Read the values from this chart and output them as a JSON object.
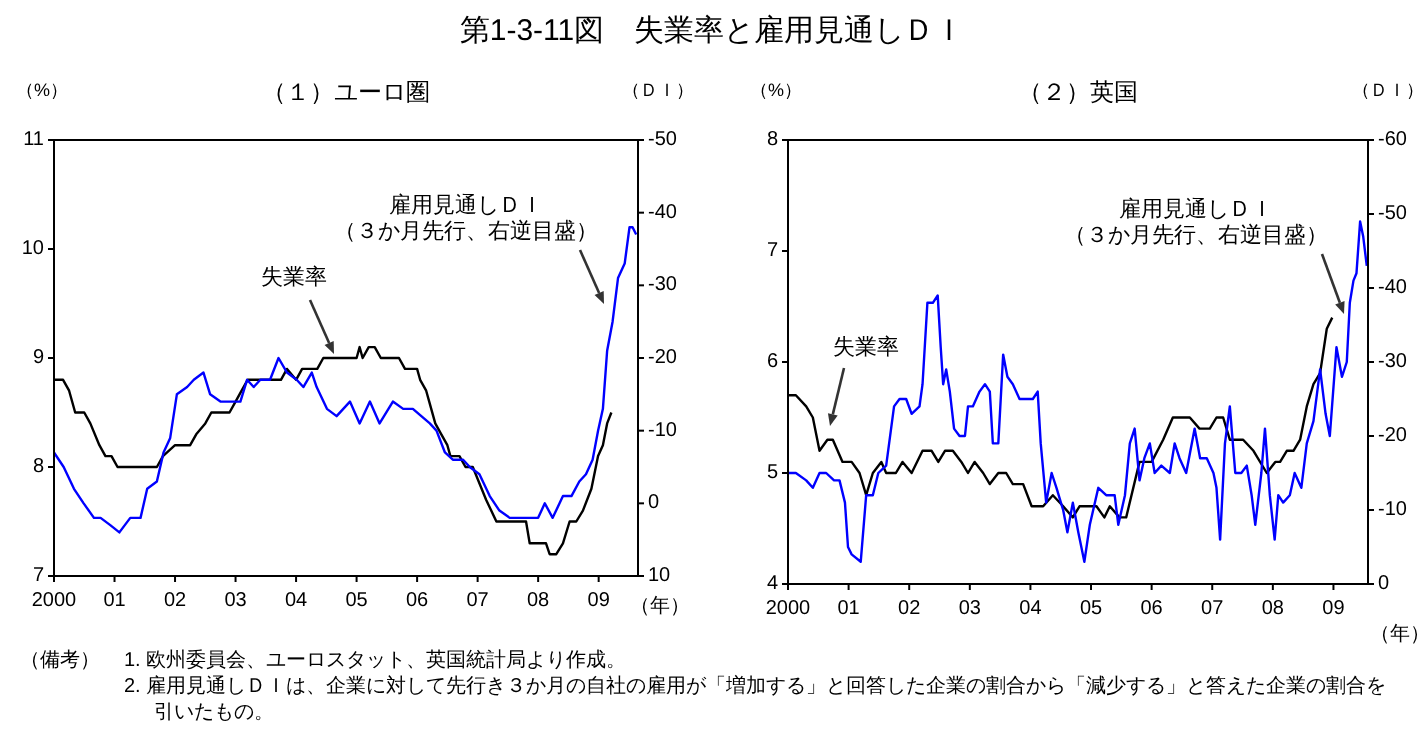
{
  "chart_data": [
    {
      "type": "line",
      "title": "（１）ユーロ圏",
      "ylabel": "（%）",
      "y2label": "（ＤＩ）",
      "xlabel": "（年）",
      "xlim": [
        2000,
        2009.65
      ],
      "xticks": [
        {
          "value": 2000,
          "label": "2000"
        },
        {
          "value": 2001,
          "label": "01"
        },
        {
          "value": 2002,
          "label": "02"
        },
        {
          "value": 2003,
          "label": "03"
        },
        {
          "value": 2004,
          "label": "04"
        },
        {
          "value": 2005,
          "label": "05"
        },
        {
          "value": 2006,
          "label": "06"
        },
        {
          "value": 2007,
          "label": "07"
        },
        {
          "value": 2008,
          "label": "08"
        },
        {
          "value": 2009,
          "label": "09"
        }
      ],
      "ylim": [
        7,
        11
      ],
      "yticks": [
        7,
        8,
        9,
        10,
        11
      ],
      "y2lim": [
        10,
        -50
      ],
      "y2ticks": [
        10,
        0,
        -10,
        -20,
        -30,
        -40,
        -50
      ],
      "series": [
        {
          "color": "#000000",
          "x": [
            2000,
            2000.15,
            2000.25,
            2000.35,
            2000.5,
            2000.6,
            2000.75,
            2000.85,
            2000.95,
            2001.05,
            2001.7,
            2001.8,
            2002.0,
            2002.25,
            2002.35,
            2002.5,
            2002.6,
            2002.9,
            2003.0,
            2003.1,
            2003.2,
            2003.75,
            2003.85,
            2004.0,
            2004.1,
            2004.35,
            2004.45,
            2005.0,
            2005.05,
            2005.1,
            2005.2,
            2005.3,
            2005.4,
            2005.7,
            2005.8,
            2006.0,
            2006.05,
            2006.15,
            2006.2,
            2006.3,
            2006.4,
            2006.5,
            2006.55,
            2006.7,
            2006.8,
            2006.92,
            2007.14,
            2007.31,
            2007.8,
            2007.86,
            2008.13,
            2008.19,
            2008.3,
            2008.41,
            2008.52,
            2008.63,
            2008.74,
            2008.88,
            2008.99,
            2009.07,
            2009.14,
            2009.21
          ],
          "values": [
            8.8,
            8.8,
            8.7,
            8.5,
            8.5,
            8.4,
            8.2,
            8.1,
            8.1,
            8.0,
            8.0,
            8.1,
            8.2,
            8.2,
            8.3,
            8.4,
            8.5,
            8.5,
            8.6,
            8.7,
            8.8,
            8.8,
            8.9,
            8.8,
            8.9,
            8.9,
            9.0,
            9.0,
            9.1,
            9.0,
            9.1,
            9.1,
            9.0,
            9.0,
            8.9,
            8.9,
            8.8,
            8.7,
            8.6,
            8.4,
            8.3,
            8.2,
            8.1,
            8.1,
            8.0,
            8.0,
            7.7,
            7.5,
            7.5,
            7.3,
            7.3,
            7.2,
            7.2,
            7.3,
            7.5,
            7.5,
            7.6,
            7.8,
            8.1,
            8.2,
            8.4,
            8.5
          ]
        },
        {
          "color": "#0000ff",
          "axis": "y2",
          "x": [
            2000,
            2000.16,
            2000.33,
            2000.49,
            2000.66,
            2000.77,
            2000.93,
            2001.08,
            2001.26,
            2001.43,
            2001.54,
            2001.7,
            2001.81,
            2001.92,
            2002.03,
            2002.2,
            2002.31,
            2002.47,
            2002.58,
            2002.75,
            2002.91,
            2003.08,
            2003.19,
            2003.3,
            2003.41,
            2003.57,
            2003.71,
            2003.85,
            2004.01,
            2004.12,
            2004.26,
            2004.34,
            2004.51,
            2004.67,
            2004.78,
            2004.89,
            2005.05,
            2005.22,
            2005.38,
            2005.6,
            2005.77,
            2005.93,
            2006.07,
            2006.21,
            2006.32,
            2006.46,
            2006.59,
            2006.76,
            2006.87,
            2007.03,
            2007.2,
            2007.36,
            2007.53,
            2007.69,
            2007.86,
            2008.0,
            2008.11,
            2008.24,
            2008.41,
            2008.55,
            2008.68,
            2008.79,
            2008.9,
            2008.99,
            2009.07,
            2009.14,
            2009.23,
            2009.32,
            2009.43,
            2009.51,
            2009.56,
            2009.62
          ],
          "values": [
            -7,
            -5,
            -2,
            0,
            2,
            2,
            3,
            4,
            2,
            2,
            -2,
            -3,
            -7,
            -9,
            -15,
            -16,
            -17,
            -18,
            -15,
            -14,
            -14,
            -14,
            -17,
            -16,
            -17,
            -17,
            -20,
            -18,
            -17,
            -16,
            -18,
            -16,
            -13,
            -12,
            -13,
            -14,
            -11,
            -14,
            -11,
            -14,
            -13,
            -13,
            -12,
            -11,
            -10,
            -7,
            -6,
            -6,
            -5,
            -4,
            -1,
            1,
            2,
            2,
            2,
            2,
            0,
            2,
            -1,
            -1,
            -3,
            -4,
            -6,
            -10,
            -13,
            -21,
            -25,
            -31,
            -33,
            -38,
            -38,
            -37
          ]
        }
      ],
      "annotations": [
        "失業率",
        "雇用見通しＤＩ（３か月先行、右逆目盛）"
      ]
    },
    {
      "type": "line",
      "title": "（２）英国",
      "ylabel": "（%）",
      "y2label": "（ＤＩ）",
      "xlabel": "（年）",
      "xlim": [
        2000,
        2009.57
      ],
      "xticks": [
        {
          "value": 2000,
          "label": "2000"
        },
        {
          "value": 2001,
          "label": "01"
        },
        {
          "value": 2002,
          "label": "02"
        },
        {
          "value": 2003,
          "label": "03"
        },
        {
          "value": 2004,
          "label": "04"
        },
        {
          "value": 2005,
          "label": "05"
        },
        {
          "value": 2006,
          "label": "06"
        },
        {
          "value": 2007,
          "label": "07"
        },
        {
          "value": 2008,
          "label": "08"
        },
        {
          "value": 2009,
          "label": "09"
        }
      ],
      "ylim": [
        4,
        8
      ],
      "yticks": [
        4,
        5,
        6,
        7,
        8
      ],
      "y2lim": [
        0,
        -60
      ],
      "y2ticks": [
        0,
        -10,
        -20,
        -30,
        -40,
        -50,
        -60
      ],
      "series": [
        {
          "color": "#000000",
          "x": [
            2000,
            2000.13,
            2000.3,
            2000.41,
            2000.52,
            2000.65,
            2000.74,
            2000.9,
            2001.05,
            2001.18,
            2001.29,
            2001.4,
            2001.54,
            2001.62,
            2001.78,
            2001.89,
            2002.04,
            2002.22,
            2002.37,
            2002.48,
            2002.59,
            2002.72,
            2002.86,
            2002.97,
            2003.08,
            2003.22,
            2003.33,
            2003.47,
            2003.6,
            2003.71,
            2003.88,
            2004.02,
            2004.21,
            2004.37,
            2004.54,
            2004.7,
            2004.81,
            2005.09,
            2005.22,
            2005.31,
            2005.47,
            2005.58,
            2005.8,
            2006.0,
            2006.19,
            2006.35,
            2006.63,
            2006.79,
            2006.96,
            2007.07,
            2007.18,
            2007.29,
            2007.51,
            2007.68,
            2007.9,
            2008.04,
            2008.12,
            2008.23,
            2008.34,
            2008.45,
            2008.56,
            2008.67,
            2008.78,
            2008.89,
            2008.98
          ],
          "values": [
            5.7,
            5.7,
            5.6,
            5.5,
            5.2,
            5.3,
            5.3,
            5.1,
            5.1,
            5.0,
            4.8,
            5.0,
            5.1,
            5.0,
            5.0,
            5.1,
            5.0,
            5.2,
            5.2,
            5.1,
            5.2,
            5.2,
            5.1,
            5.0,
            5.1,
            5.0,
            4.9,
            5.0,
            5.0,
            4.9,
            4.9,
            4.7,
            4.7,
            4.8,
            4.7,
            4.6,
            4.7,
            4.7,
            4.6,
            4.7,
            4.6,
            4.6,
            5.1,
            5.1,
            5.3,
            5.5,
            5.5,
            5.4,
            5.4,
            5.5,
            5.5,
            5.3,
            5.3,
            5.2,
            5.0,
            5.1,
            5.1,
            5.2,
            5.2,
            5.3,
            5.6,
            5.8,
            5.9,
            6.3,
            6.4
          ]
        },
        {
          "color": "#0000ff",
          "axis": "y2",
          "x": [
            2000,
            2000.13,
            2000.3,
            2000.41,
            2000.52,
            2000.63,
            2000.76,
            2000.85,
            2000.94,
            2000.99,
            2001.05,
            2001.2,
            2001.29,
            2001.4,
            2001.49,
            2001.62,
            2001.75,
            2001.84,
            2001.95,
            2002.04,
            2002.17,
            2002.22,
            2002.3,
            2002.39,
            2002.47,
            2002.52,
            2002.56,
            2002.61,
            2002.67,
            2002.74,
            2002.83,
            2002.92,
            2002.97,
            2003.05,
            2003.16,
            2003.25,
            2003.33,
            2003.38,
            2003.47,
            2003.55,
            2003.62,
            2003.71,
            2003.82,
            2003.93,
            2004.04,
            2004.12,
            2004.17,
            2004.26,
            2004.35,
            2004.43,
            2004.54,
            2004.61,
            2004.7,
            2004.79,
            2004.89,
            2004.98,
            2005.12,
            2005.25,
            2005.39,
            2005.45,
            2005.56,
            2005.64,
            2005.72,
            2005.8,
            2005.88,
            2005.97,
            2006.05,
            2006.16,
            2006.3,
            2006.38,
            2006.46,
            2006.57,
            2006.71,
            2006.8,
            2006.91,
            2007.02,
            2007.07,
            2007.13,
            2007.21,
            2007.29,
            2007.38,
            2007.48,
            2007.57,
            2007.65,
            2007.71,
            2007.81,
            2007.87,
            2007.95,
            2008.03,
            2008.09,
            2008.17,
            2008.28,
            2008.36,
            2008.47,
            2008.56,
            2008.67,
            2008.78,
            2008.87,
            2008.94,
            2009.05,
            2009.14,
            2009.22,
            2009.27,
            2009.33,
            2009.38,
            2009.44,
            2009.49,
            2009.55
          ],
          "values": [
            -15,
            -15,
            -14,
            -13,
            -15,
            -15,
            -14,
            -14,
            -11,
            -5,
            -4,
            -3,
            -12,
            -12,
            -15,
            -16,
            -24,
            -25,
            -25,
            -23,
            -24,
            -27,
            -38,
            -38,
            -39,
            -32,
            -27,
            -29,
            -26,
            -21,
            -20,
            -20,
            -24,
            -24,
            -26,
            -27,
            -26,
            -19,
            -19,
            -31,
            -28,
            -27,
            -25,
            -25,
            -25,
            -26,
            -19,
            -11,
            -15,
            -13,
            -10,
            -7,
            -11,
            -7,
            -3,
            -8,
            -13,
            -12,
            -12,
            -8,
            -12,
            -19,
            -21,
            -14,
            -17,
            -19,
            -15,
            -16,
            -15,
            -19,
            -17,
            -15,
            -21,
            -17,
            -17,
            -15,
            -13,
            -6,
            -19,
            -24,
            -15,
            -15,
            -16,
            -12,
            -8,
            -15,
            -21,
            -12,
            -6,
            -12,
            -11,
            -12,
            -15,
            -13,
            -19,
            -22,
            -29,
            -23,
            -20,
            -32,
            -28,
            -30,
            -38,
            -41,
            -42,
            -49,
            -47,
            -43
          ]
        }
      ],
      "annotations": [
        "失業率",
        "雇用見通しＤＩ（３か月先行、右逆目盛）"
      ]
    },
    {
      "type": "other",
      "title": "第1-3-11図　失業率と雇用見通しＤＩ",
      "annotations": [
        "（備考）",
        "1. 欧州委員会、ユーロスタット、英国統計局より作成。",
        "2. 雇用見通しＤＩは、企業に対して先行き３か月の自社の雇用が「増加する」と回答した企業の割合から「減少する」と答えた企業の割合を引いたもの。"
      ]
    }
  ]
}
